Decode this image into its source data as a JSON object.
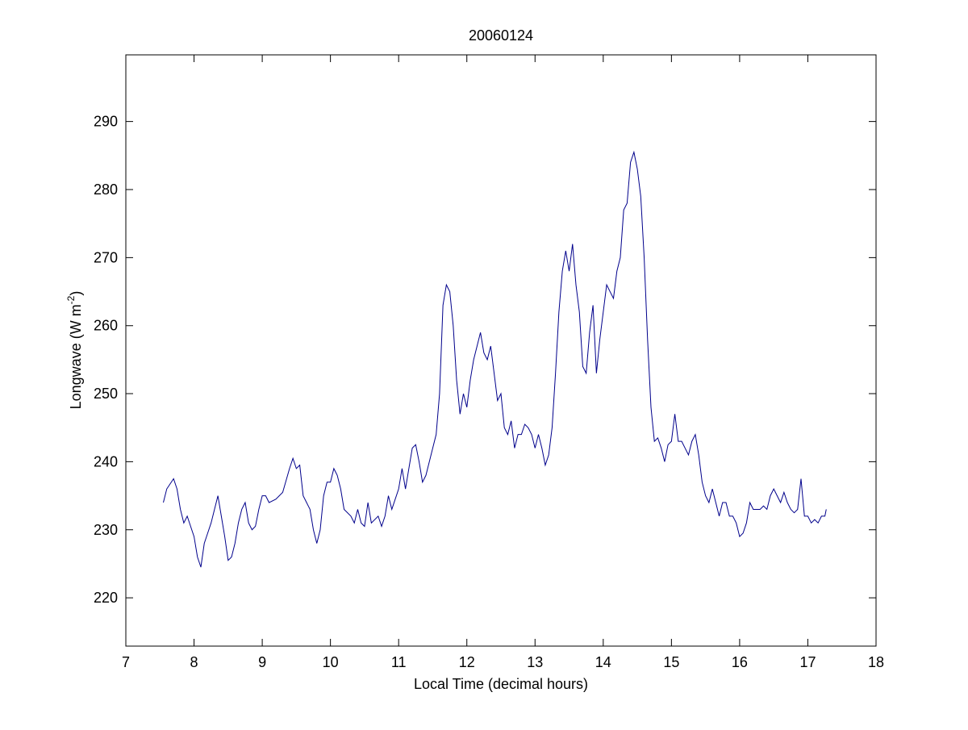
{
  "chart_data": {
    "type": "line",
    "title": "20060124",
    "xlabel": "Local Time (decimal hours)",
    "ylabel": {
      "text": "Longwave (W m",
      "superscript": "-2",
      "suffix": ")"
    },
    "xlim": [
      7,
      18
    ],
    "xticks": [
      7,
      8,
      9,
      10,
      11,
      12,
      13,
      14,
      15,
      16,
      17,
      18
    ],
    "ylim": [
      212.9,
      299.8
    ],
    "yticks": [
      220,
      230,
      240,
      250,
      260,
      270,
      280,
      290
    ],
    "grid": false,
    "color": "#00008b",
    "x": [
      7.55,
      7.6,
      7.7,
      7.75,
      7.8,
      7.85,
      7.9,
      8.0,
      8.05,
      8.1,
      8.15,
      8.2,
      8.25,
      8.3,
      8.35,
      8.4,
      8.45,
      8.5,
      8.55,
      8.6,
      8.65,
      8.7,
      8.75,
      8.8,
      8.85,
      8.9,
      8.95,
      9.0,
      9.05,
      9.1,
      9.2,
      9.3,
      9.4,
      9.45,
      9.5,
      9.55,
      9.6,
      9.7,
      9.75,
      9.8,
      9.85,
      9.9,
      9.95,
      10.0,
      10.05,
      10.1,
      10.15,
      10.2,
      10.3,
      10.35,
      10.4,
      10.45,
      10.5,
      10.55,
      10.6,
      10.7,
      10.75,
      10.8,
      10.85,
      10.9,
      11.0,
      11.05,
      11.1,
      11.15,
      11.2,
      11.25,
      11.3,
      11.35,
      11.4,
      11.45,
      11.5,
      11.55,
      11.6,
      11.65,
      11.7,
      11.75,
      11.8,
      11.85,
      11.9,
      11.95,
      12.0,
      12.05,
      12.1,
      12.15,
      12.2,
      12.25,
      12.3,
      12.35,
      12.4,
      12.45,
      12.5,
      12.55,
      12.6,
      12.65,
      12.7,
      12.75,
      12.8,
      12.85,
      12.9,
      12.95,
      13.0,
      13.05,
      13.1,
      13.15,
      13.2,
      13.25,
      13.3,
      13.35,
      13.4,
      13.45,
      13.5,
      13.55,
      13.6,
      13.65,
      13.7,
      13.75,
      13.8,
      13.85,
      13.9,
      13.95,
      14.0,
      14.05,
      14.1,
      14.15,
      14.2,
      14.25,
      14.3,
      14.35,
      14.4,
      14.45,
      14.5,
      14.55,
      14.6,
      14.65,
      14.7,
      14.75,
      14.8,
      14.85,
      14.9,
      14.95,
      15.0,
      15.05,
      15.1,
      15.15,
      15.2,
      15.25,
      15.3,
      15.35,
      15.4,
      15.45,
      15.5,
      15.55,
      15.6,
      15.65,
      15.7,
      15.75,
      15.8,
      15.85,
      15.9,
      15.95,
      16.0,
      16.05,
      16.1,
      16.15,
      16.2,
      16.3,
      16.35,
      16.4,
      16.45,
      16.5,
      16.55,
      16.6,
      16.65,
      16.7,
      16.75,
      16.8,
      16.85,
      16.9,
      16.95,
      17.0,
      17.05,
      17.1,
      17.15,
      17.2,
      17.25,
      17.27
    ],
    "values": [
      234,
      236,
      237.5,
      236,
      233,
      231,
      232,
      229,
      226,
      224.5,
      228,
      229.5,
      231,
      233,
      235,
      232,
      229,
      225.5,
      226,
      228,
      231,
      233,
      234,
      231,
      230,
      230.5,
      233,
      235,
      235,
      234,
      234.5,
      235.5,
      239,
      240.5,
      239,
      239.5,
      235,
      233,
      230,
      228,
      230,
      235,
      237,
      237,
      239,
      238,
      236,
      233,
      232,
      231,
      233,
      231,
      230.5,
      234,
      231,
      232,
      230.5,
      232,
      235,
      233,
      236,
      239,
      236,
      239,
      242,
      242.5,
      240,
      237,
      238,
      240,
      242,
      244,
      250,
      263,
      266,
      265,
      260,
      252,
      247,
      250,
      248,
      252,
      255,
      257,
      259,
      256,
      255,
      257,
      253,
      249,
      250,
      245,
      244,
      246,
      242,
      244,
      244,
      245.5,
      245,
      244,
      242,
      244,
      242,
      239.5,
      241,
      245,
      253,
      262,
      268,
      271,
      268,
      272,
      266,
      262,
      254,
      253,
      259,
      263,
      253,
      258,
      262,
      266,
      265,
      264,
      268,
      270,
      277,
      278,
      284,
      285.5,
      283,
      279,
      270,
      258,
      248,
      243,
      243.5,
      242,
      240,
      242.5,
      243,
      247,
      243,
      243,
      242,
      241,
      243,
      244,
      241,
      237,
      235,
      234,
      236,
      234,
      232,
      234,
      234,
      232,
      232,
      231,
      229,
      229.5,
      231,
      234,
      233,
      233,
      233.5,
      233,
      235,
      236,
      235,
      234,
      235.5,
      234,
      233,
      232.5,
      233,
      237.5,
      232,
      232,
      231,
      231.5,
      231,
      232,
      232,
      233
    ]
  }
}
